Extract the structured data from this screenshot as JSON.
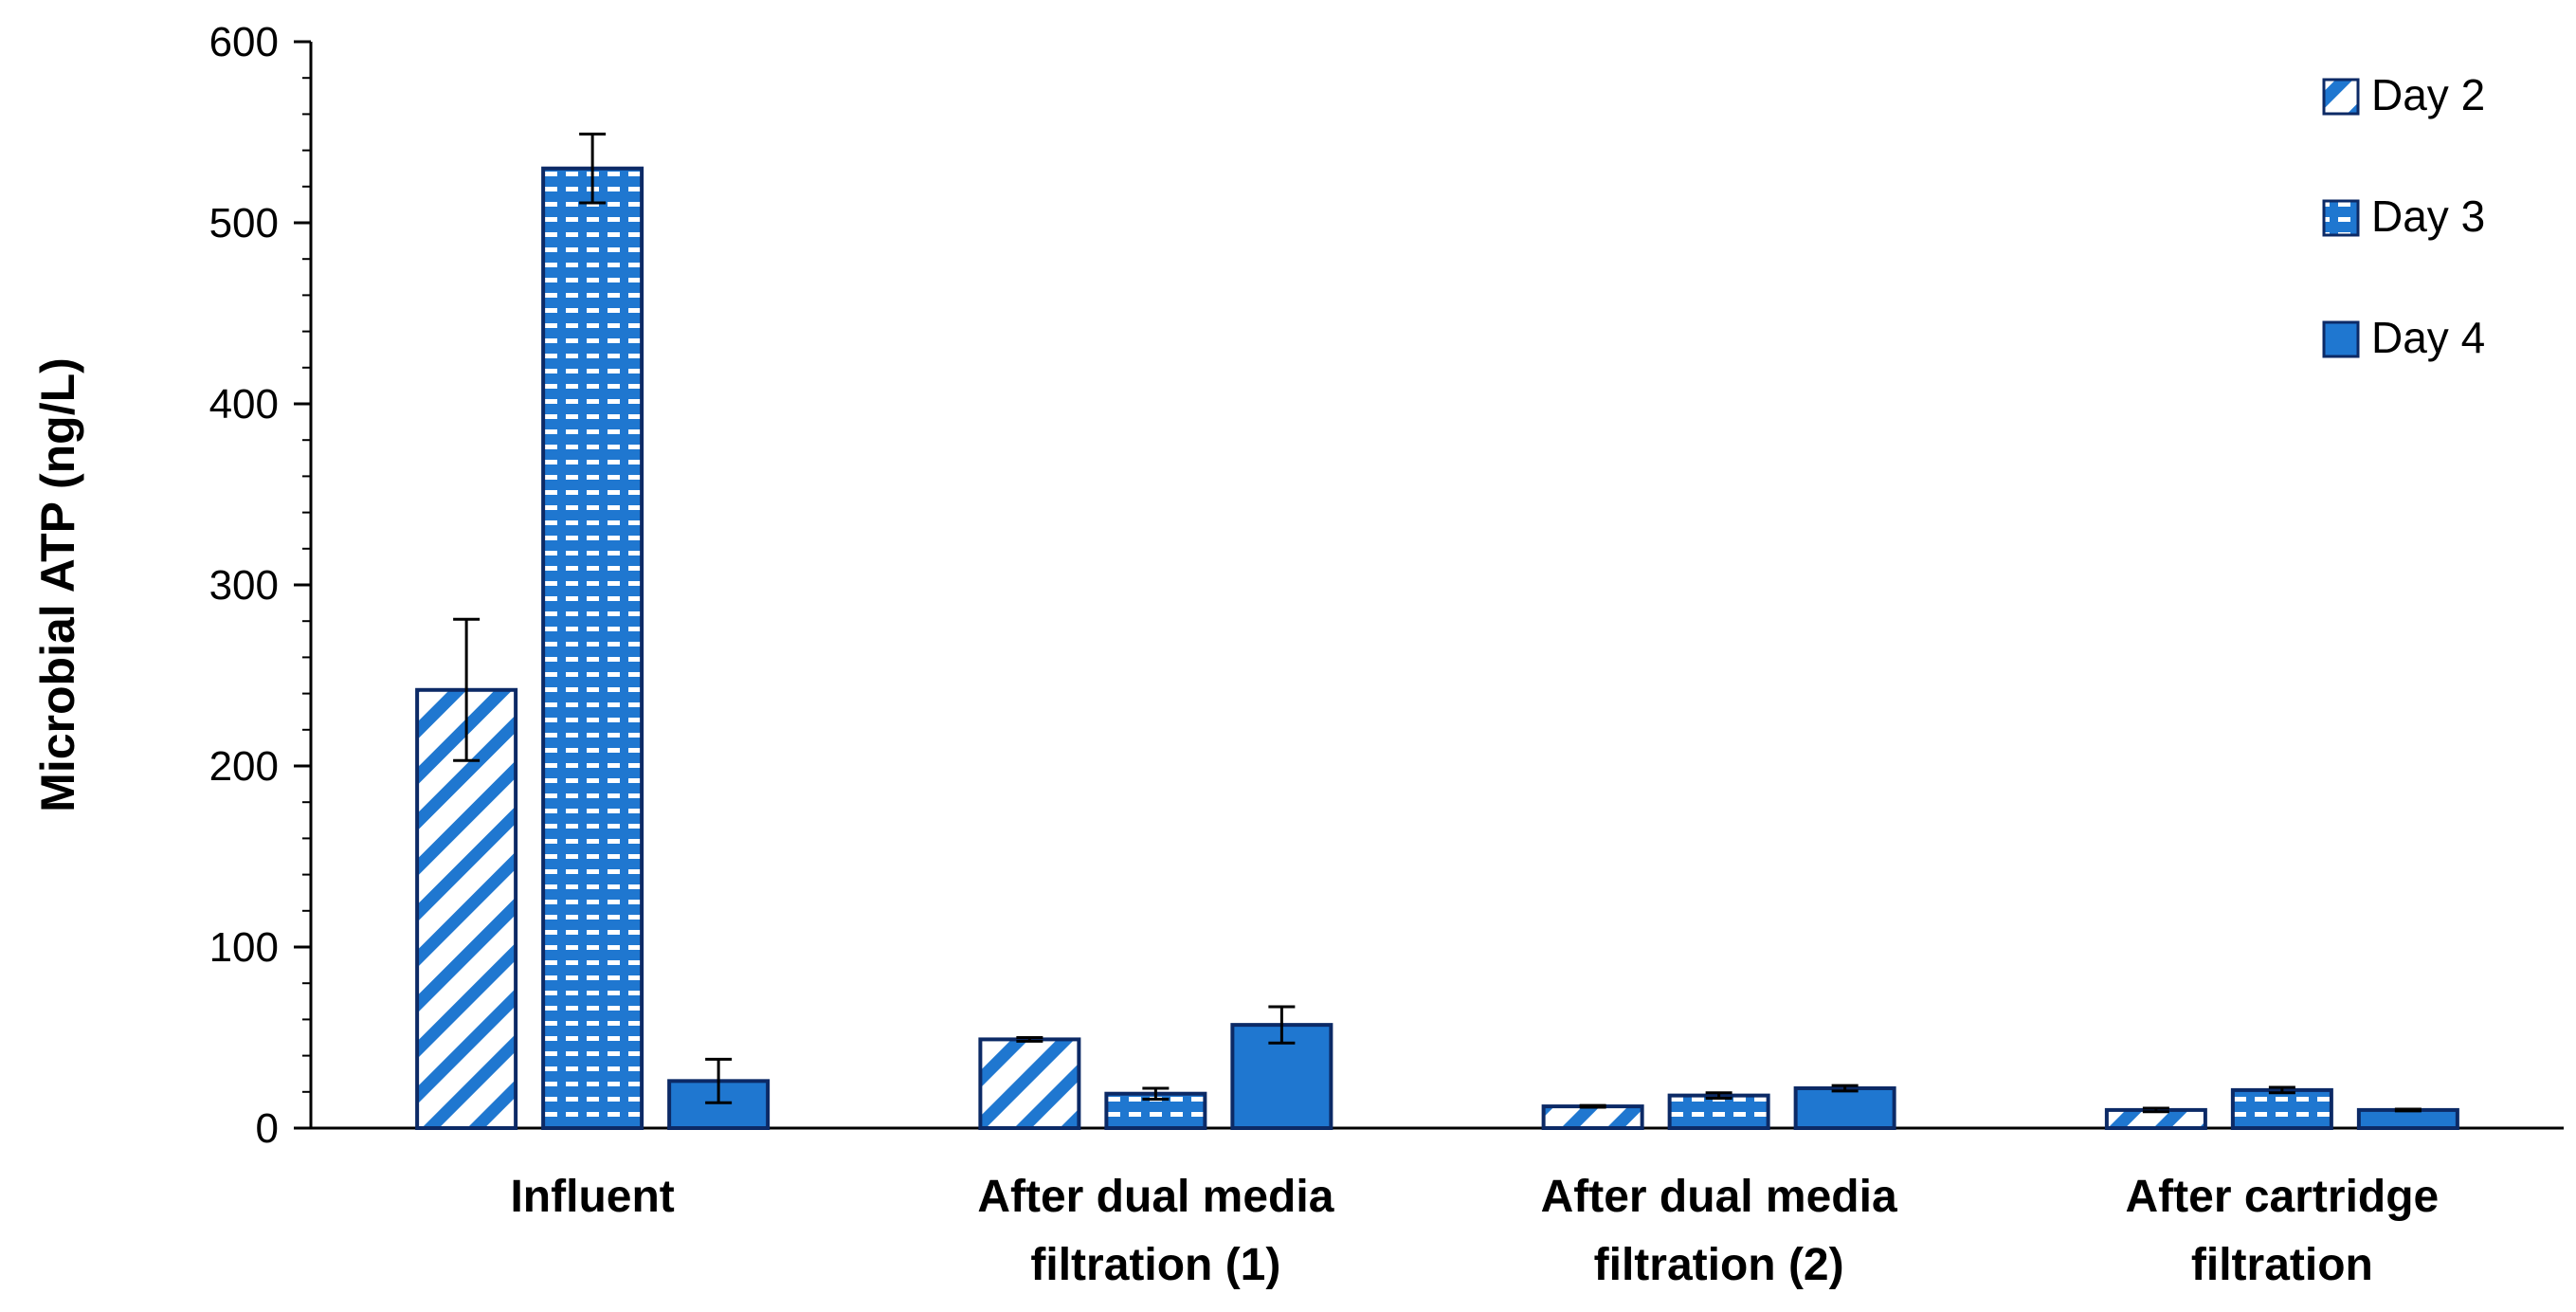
{
  "chart_data": {
    "type": "bar",
    "title": "",
    "xlabel": "",
    "ylabel": "Microbial ATP (ng/L)",
    "ylim": [
      0,
      600
    ],
    "yticks": [
      0,
      100,
      200,
      300,
      400,
      500,
      600
    ],
    "categories": [
      [
        "Influent"
      ],
      [
        "After dual media",
        "filtration (1)"
      ],
      [
        "After dual media",
        "filtration (2)"
      ],
      [
        "After cartridge",
        "filtration"
      ]
    ],
    "series": [
      {
        "name": "Day 2",
        "pattern": "diagonal-stripes",
        "values": [
          242,
          49,
          12,
          10
        ],
        "errors": [
          39,
          1,
          0.5,
          1
        ]
      },
      {
        "name": "Day 3",
        "pattern": "dashed-dots",
        "values": [
          530,
          19,
          18,
          21
        ],
        "errors": [
          19,
          3,
          1.5,
          1.5
        ]
      },
      {
        "name": "Day 4",
        "pattern": "solid",
        "values": [
          26,
          57,
          22,
          10
        ],
        "errors": [
          12,
          10,
          1.5,
          0.5
        ]
      }
    ],
    "legend_position": "top-right",
    "grid": false,
    "colors": {
      "fill": "#1f77d0",
      "edge": "#0c2a66",
      "axis": "#000000"
    }
  }
}
